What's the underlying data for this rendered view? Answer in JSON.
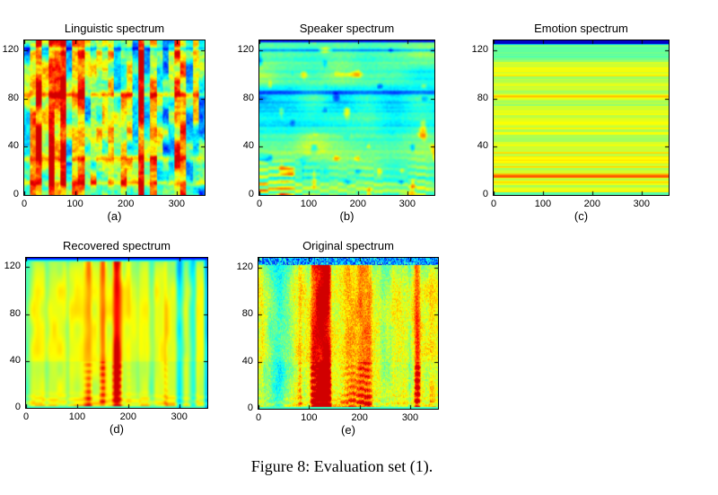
{
  "caption": "Figure 8: Evaluation set (1).",
  "colors": {
    "background": "#ffffff",
    "axis": "#000000",
    "text": "#000000"
  },
  "chart_data": [
    {
      "id": "a",
      "type": "heatmap",
      "title": "Linguistic spectrum",
      "sublabel": "(a)",
      "xlim": [
        0,
        355
      ],
      "ylim": [
        0,
        128
      ],
      "xticks": [
        0,
        100,
        200,
        300
      ],
      "yticks": [
        0,
        40,
        80,
        120
      ],
      "colormap": "jet",
      "description": "high-contrast vertical segment columns of red/orange and cyan/blue with red horizontal bands near rows 10, 30 and 83",
      "gen": {
        "pattern": "linguistic",
        "seed": 3,
        "res": 1.3
      }
    },
    {
      "id": "b",
      "type": "heatmap",
      "title": "Speaker spectrum",
      "sublabel": "(b)",
      "xlim": [
        0,
        355
      ],
      "ylim": [
        0,
        128
      ],
      "xticks": [
        0,
        100,
        200,
        300
      ],
      "yticks": [
        0,
        40,
        80,
        120
      ],
      "colormap": "jet",
      "description": "smooth cyan-green field with thin horizontal stripes, blue mid-band blobs, and red/orange harmonic streaks in the lowest rows, strongest at the left",
      "gen": {
        "pattern": "speaker",
        "seed": 11,
        "res": 2
      }
    },
    {
      "id": "c",
      "type": "heatmap",
      "title": "Emotion spectrum",
      "sublabel": "(c)",
      "xlim": [
        0,
        355
      ],
      "ylim": [
        0,
        128
      ],
      "xticks": [
        0,
        100,
        200,
        300
      ],
      "yticks": [
        0,
        40,
        80,
        120
      ],
      "colormap": "jet",
      "description": "time-constant horizontal stripes: dark blue band at top, cyan band below it, then yellow/green stripes with orange lines near rows 15 and 82",
      "gen": {
        "pattern": "emotion",
        "seed": 5,
        "res": 1
      }
    },
    {
      "id": "d",
      "type": "heatmap",
      "title": "Recovered spectrum",
      "sublabel": "(d)",
      "xlim": [
        0,
        355
      ],
      "ylim": [
        0,
        128
      ],
      "xticks": [
        0,
        100,
        200,
        300
      ],
      "yticks": [
        0,
        40,
        80,
        120
      ],
      "colormap": "jet",
      "description": "smooth yellow field with red vertical wisps, red harmonic ladders near the bottom, thin dark-blue top edge and thin cyan bottom edge",
      "gen": {
        "pattern": "wispy",
        "seed": 8,
        "res": 2,
        "grain": 0,
        "harm": 0.35
      }
    },
    {
      "id": "e",
      "type": "heatmap",
      "title": "Original spectrum",
      "sublabel": "(e)",
      "xlim": [
        0,
        355
      ],
      "ylim": [
        0,
        128
      ],
      "xticks": [
        0,
        100,
        200,
        300
      ],
      "yticks": [
        0,
        40,
        80,
        120
      ],
      "colormap": "jet",
      "description": "grainy version of the recovered spectrum: noisy yellow/green field, strong red harmonic stacks at bottom, speckled dark-blue band along the top",
      "gen": {
        "pattern": "wispy",
        "seed": 21,
        "res": 1,
        "grain": 0.13,
        "harm": 0.5
      }
    }
  ]
}
